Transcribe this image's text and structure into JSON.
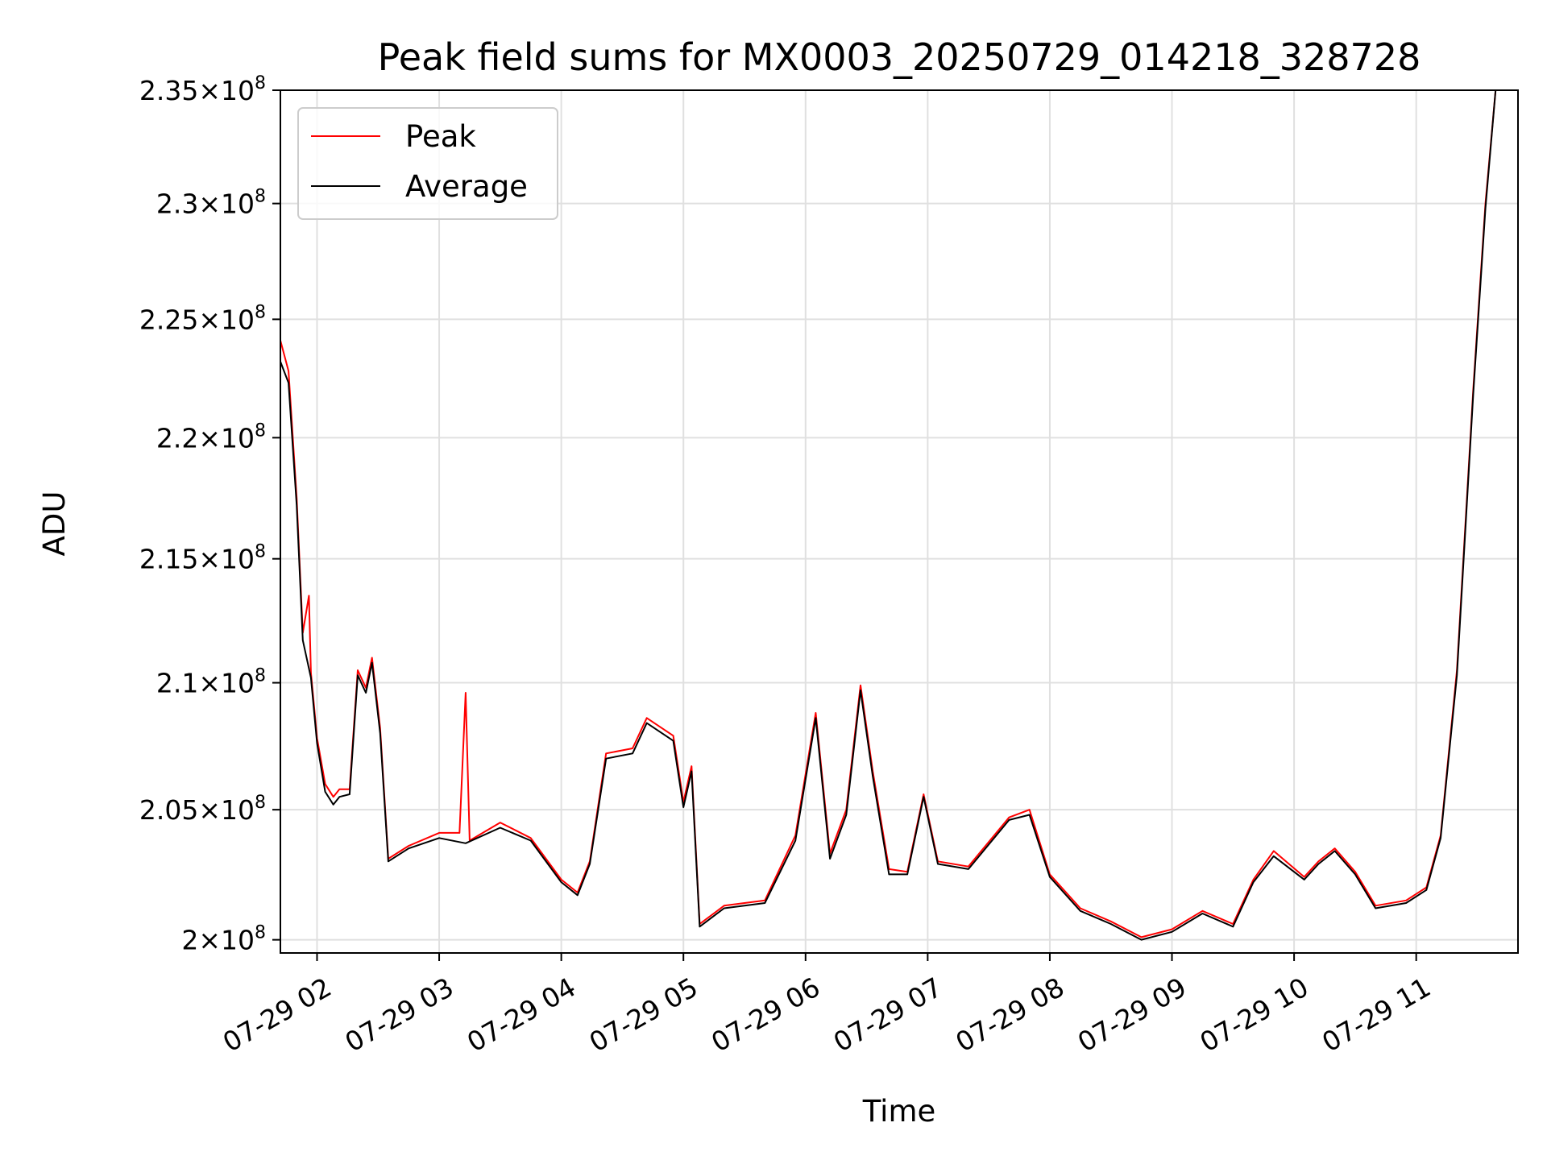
{
  "chart_data": {
    "type": "line",
    "title": "Peak field sums for MX0003_20250729_014218_328728",
    "xlabel": "Time",
    "ylabel": "ADU",
    "x_scale": "time",
    "y_scale": "log",
    "xlim": [
      "2025-07-29 01:42",
      "2025-07-29 11:50"
    ],
    "ylim": [
      199500000,
      235000000
    ],
    "grid": true,
    "legend_position": "top-left",
    "x_ticks": [
      {
        "value": "2025-07-29 02:00",
        "label": "07-29 02"
      },
      {
        "value": "2025-07-29 03:00",
        "label": "07-29 03"
      },
      {
        "value": "2025-07-29 04:00",
        "label": "07-29 04"
      },
      {
        "value": "2025-07-29 05:00",
        "label": "07-29 05"
      },
      {
        "value": "2025-07-29 06:00",
        "label": "07-29 06"
      },
      {
        "value": "2025-07-29 07:00",
        "label": "07-29 07"
      },
      {
        "value": "2025-07-29 08:00",
        "label": "07-29 08"
      },
      {
        "value": "2025-07-29 09:00",
        "label": "07-29 09"
      },
      {
        "value": "2025-07-29 10:00",
        "label": "07-29 10"
      },
      {
        "value": "2025-07-29 11:00",
        "label": "07-29 11"
      }
    ],
    "y_ticks": [
      {
        "value": 200000000,
        "mantissa": "2",
        "exponent": "8"
      },
      {
        "value": 205000000,
        "mantissa": "2.05",
        "exponent": "8"
      },
      {
        "value": 210000000,
        "mantissa": "2.1",
        "exponent": "8"
      },
      {
        "value": 215000000,
        "mantissa": "2.15",
        "exponent": "8"
      },
      {
        "value": 220000000,
        "mantissa": "2.2",
        "exponent": "8"
      },
      {
        "value": 225000000,
        "mantissa": "2.25",
        "exponent": "8"
      },
      {
        "value": 230000000,
        "mantissa": "2.3",
        "exponent": "8"
      },
      {
        "value": 235000000,
        "mantissa": "2.35",
        "exponent": "8"
      }
    ],
    "series": [
      {
        "name": "Peak",
        "color": "#ff0000",
        "points": [
          [
            "2025-07-29 01:42",
            224100000
          ],
          [
            "2025-07-29 01:46",
            222800000
          ],
          [
            "2025-07-29 01:50",
            217500000
          ],
          [
            "2025-07-29 01:53",
            212000000
          ],
          [
            "2025-07-29 01:56",
            213500000
          ],
          [
            "2025-07-29 01:57",
            210400000
          ],
          [
            "2025-07-29 02:00",
            207800000
          ],
          [
            "2025-07-29 02:04",
            206000000
          ],
          [
            "2025-07-29 02:08",
            205500000
          ],
          [
            "2025-07-29 02:11",
            205800000
          ],
          [
            "2025-07-29 02:16",
            205800000
          ],
          [
            "2025-07-29 02:20",
            210500000
          ],
          [
            "2025-07-29 02:24",
            209800000
          ],
          [
            "2025-07-29 02:27",
            211000000
          ],
          [
            "2025-07-29 02:31",
            208200000
          ],
          [
            "2025-07-29 02:35",
            203100000
          ],
          [
            "2025-07-29 02:45",
            203600000
          ],
          [
            "2025-07-29 03:00",
            204100000
          ],
          [
            "2025-07-29 03:10",
            204100000
          ],
          [
            "2025-07-29 03:13",
            209600000
          ],
          [
            "2025-07-29 03:15",
            203800000
          ],
          [
            "2025-07-29 03:30",
            204500000
          ],
          [
            "2025-07-29 03:45",
            203900000
          ],
          [
            "2025-07-29 04:00",
            202300000
          ],
          [
            "2025-07-29 04:08",
            201800000
          ],
          [
            "2025-07-29 04:14",
            203000000
          ],
          [
            "2025-07-29 04:22",
            207200000
          ],
          [
            "2025-07-29 04:35",
            207400000
          ],
          [
            "2025-07-29 04:42",
            208600000
          ],
          [
            "2025-07-29 04:55",
            207900000
          ],
          [
            "2025-07-29 05:00",
            205300000
          ],
          [
            "2025-07-29 05:04",
            206700000
          ],
          [
            "2025-07-29 05:08",
            200600000
          ],
          [
            "2025-07-29 05:20",
            201300000
          ],
          [
            "2025-07-29 05:40",
            201500000
          ],
          [
            "2025-07-29 05:55",
            204000000
          ],
          [
            "2025-07-29 06:05",
            208800000
          ],
          [
            "2025-07-29 06:12",
            203300000
          ],
          [
            "2025-07-29 06:20",
            205000000
          ],
          [
            "2025-07-29 06:27",
            209900000
          ],
          [
            "2025-07-29 06:33",
            206500000
          ],
          [
            "2025-07-29 06:41",
            202700000
          ],
          [
            "2025-07-29 06:50",
            202600000
          ],
          [
            "2025-07-29 06:58",
            205600000
          ],
          [
            "2025-07-29 07:05",
            203000000
          ],
          [
            "2025-07-29 07:20",
            202800000
          ],
          [
            "2025-07-29 07:40",
            204700000
          ],
          [
            "2025-07-29 07:50",
            205000000
          ],
          [
            "2025-07-29 08:00",
            202500000
          ],
          [
            "2025-07-29 08:15",
            201200000
          ],
          [
            "2025-07-29 08:30",
            200700000
          ],
          [
            "2025-07-29 08:45",
            200100000
          ],
          [
            "2025-07-29 09:00",
            200400000
          ],
          [
            "2025-07-29 09:15",
            201100000
          ],
          [
            "2025-07-29 09:30",
            200600000
          ],
          [
            "2025-07-29 09:40",
            202300000
          ],
          [
            "2025-07-29 09:50",
            203400000
          ],
          [
            "2025-07-29 10:05",
            202400000
          ],
          [
            "2025-07-29 10:12",
            203000000
          ],
          [
            "2025-07-29 10:20",
            203500000
          ],
          [
            "2025-07-29 10:30",
            202600000
          ],
          [
            "2025-07-29 10:40",
            201300000
          ],
          [
            "2025-07-29 10:55",
            201500000
          ],
          [
            "2025-07-29 11:05",
            202000000
          ],
          [
            "2025-07-29 11:12",
            204000000
          ],
          [
            "2025-07-29 11:20",
            210500000
          ],
          [
            "2025-07-29 11:28",
            222000000
          ],
          [
            "2025-07-29 11:34",
            230000000
          ],
          [
            "2025-07-29 11:39",
            235000000
          ]
        ]
      },
      {
        "name": "Average",
        "color": "#000000",
        "points": [
          [
            "2025-07-29 01:42",
            223200000
          ],
          [
            "2025-07-29 01:46",
            222300000
          ],
          [
            "2025-07-29 01:50",
            217200000
          ],
          [
            "2025-07-29 01:53",
            211700000
          ],
          [
            "2025-07-29 01:57",
            210200000
          ],
          [
            "2025-07-29 02:00",
            207600000
          ],
          [
            "2025-07-29 02:04",
            205700000
          ],
          [
            "2025-07-29 02:08",
            205200000
          ],
          [
            "2025-07-29 02:11",
            205500000
          ],
          [
            "2025-07-29 02:16",
            205600000
          ],
          [
            "2025-07-29 02:20",
            210300000
          ],
          [
            "2025-07-29 02:24",
            209600000
          ],
          [
            "2025-07-29 02:27",
            210800000
          ],
          [
            "2025-07-29 02:31",
            208000000
          ],
          [
            "2025-07-29 02:35",
            203000000
          ],
          [
            "2025-07-29 02:45",
            203500000
          ],
          [
            "2025-07-29 03:00",
            203900000
          ],
          [
            "2025-07-29 03:13",
            203700000
          ],
          [
            "2025-07-29 03:30",
            204300000
          ],
          [
            "2025-07-29 03:45",
            203800000
          ],
          [
            "2025-07-29 04:00",
            202200000
          ],
          [
            "2025-07-29 04:08",
            201700000
          ],
          [
            "2025-07-29 04:14",
            202900000
          ],
          [
            "2025-07-29 04:22",
            207000000
          ],
          [
            "2025-07-29 04:35",
            207200000
          ],
          [
            "2025-07-29 04:42",
            208400000
          ],
          [
            "2025-07-29 04:55",
            207700000
          ],
          [
            "2025-07-29 05:00",
            205100000
          ],
          [
            "2025-07-29 05:04",
            206500000
          ],
          [
            "2025-07-29 05:08",
            200500000
          ],
          [
            "2025-07-29 05:20",
            201200000
          ],
          [
            "2025-07-29 05:40",
            201400000
          ],
          [
            "2025-07-29 05:55",
            203800000
          ],
          [
            "2025-07-29 06:05",
            208600000
          ],
          [
            "2025-07-29 06:12",
            203100000
          ],
          [
            "2025-07-29 06:20",
            204800000
          ],
          [
            "2025-07-29 06:27",
            209700000
          ],
          [
            "2025-07-29 06:33",
            206300000
          ],
          [
            "2025-07-29 06:41",
            202500000
          ],
          [
            "2025-07-29 06:50",
            202500000
          ],
          [
            "2025-07-29 06:58",
            205500000
          ],
          [
            "2025-07-29 07:05",
            202900000
          ],
          [
            "2025-07-29 07:20",
            202700000
          ],
          [
            "2025-07-29 07:40",
            204600000
          ],
          [
            "2025-07-29 07:50",
            204800000
          ],
          [
            "2025-07-29 08:00",
            202400000
          ],
          [
            "2025-07-29 08:15",
            201100000
          ],
          [
            "2025-07-29 08:30",
            200600000
          ],
          [
            "2025-07-29 08:45",
            200000000
          ],
          [
            "2025-07-29 09:00",
            200300000
          ],
          [
            "2025-07-29 09:15",
            201000000
          ],
          [
            "2025-07-29 09:30",
            200500000
          ],
          [
            "2025-07-29 09:40",
            202200000
          ],
          [
            "2025-07-29 09:50",
            203200000
          ],
          [
            "2025-07-29 10:05",
            202300000
          ],
          [
            "2025-07-29 10:12",
            202900000
          ],
          [
            "2025-07-29 10:20",
            203400000
          ],
          [
            "2025-07-29 10:30",
            202500000
          ],
          [
            "2025-07-29 10:40",
            201200000
          ],
          [
            "2025-07-29 10:55",
            201400000
          ],
          [
            "2025-07-29 11:05",
            201900000
          ],
          [
            "2025-07-29 11:12",
            203900000
          ],
          [
            "2025-07-29 11:20",
            210300000
          ],
          [
            "2025-07-29 11:28",
            221800000
          ],
          [
            "2025-07-29 11:34",
            229800000
          ],
          [
            "2025-07-29 11:39",
            235000000
          ]
        ]
      }
    ]
  }
}
